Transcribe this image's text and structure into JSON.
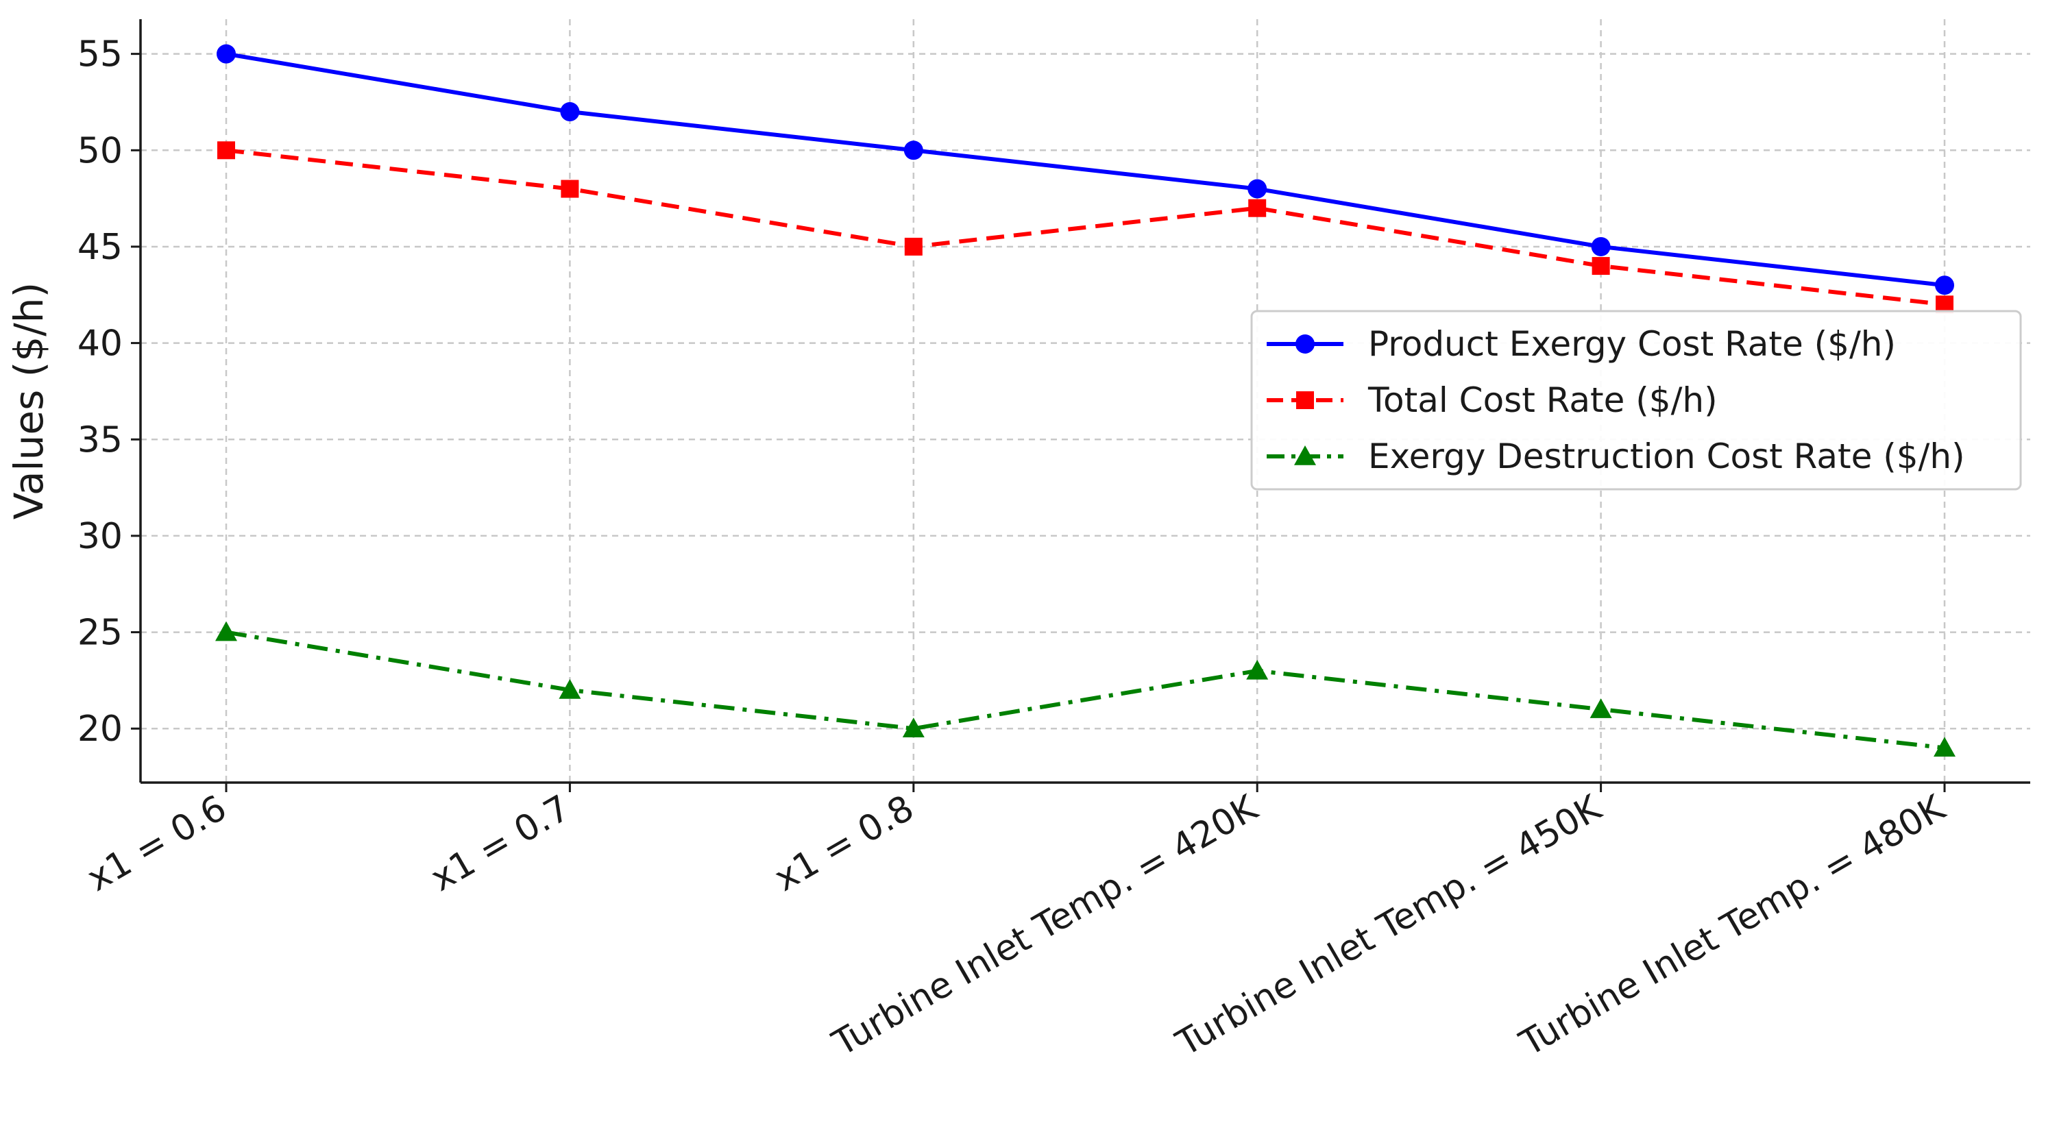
{
  "chart_data": {
    "type": "line",
    "title": "",
    "xlabel": "",
    "ylabel": "Values ($/h)",
    "categories": [
      "x1 = 0.6",
      "x1 = 0.7",
      "x1 = 0.8",
      "Turbine Inlet Temp. = 420K",
      "Turbine Inlet Temp. = 450K",
      "Turbine Inlet Temp. = 480K"
    ],
    "ylim": [
      17.2,
      56.8
    ],
    "yticks": [
      20,
      25,
      30,
      35,
      40,
      45,
      50,
      55
    ],
    "grid": true,
    "legend_position": "center-right",
    "series": [
      {
        "name": "Product Exergy Cost Rate ($/h)",
        "values": [
          55,
          52,
          50,
          48,
          45,
          43
        ],
        "color": "#0000ff",
        "line_style": "solid",
        "marker": "circle"
      },
      {
        "name": "Total Cost Rate ($/h)",
        "values": [
          50,
          48,
          45,
          47,
          44,
          42
        ],
        "color": "#ff0000",
        "line_style": "dashed",
        "marker": "square"
      },
      {
        "name": "Exergy Destruction Cost Rate ($/h)",
        "values": [
          25,
          22,
          20,
          23,
          21,
          19
        ],
        "color": "#008000",
        "line_style": "dash-dot",
        "marker": "triangle"
      }
    ]
  }
}
